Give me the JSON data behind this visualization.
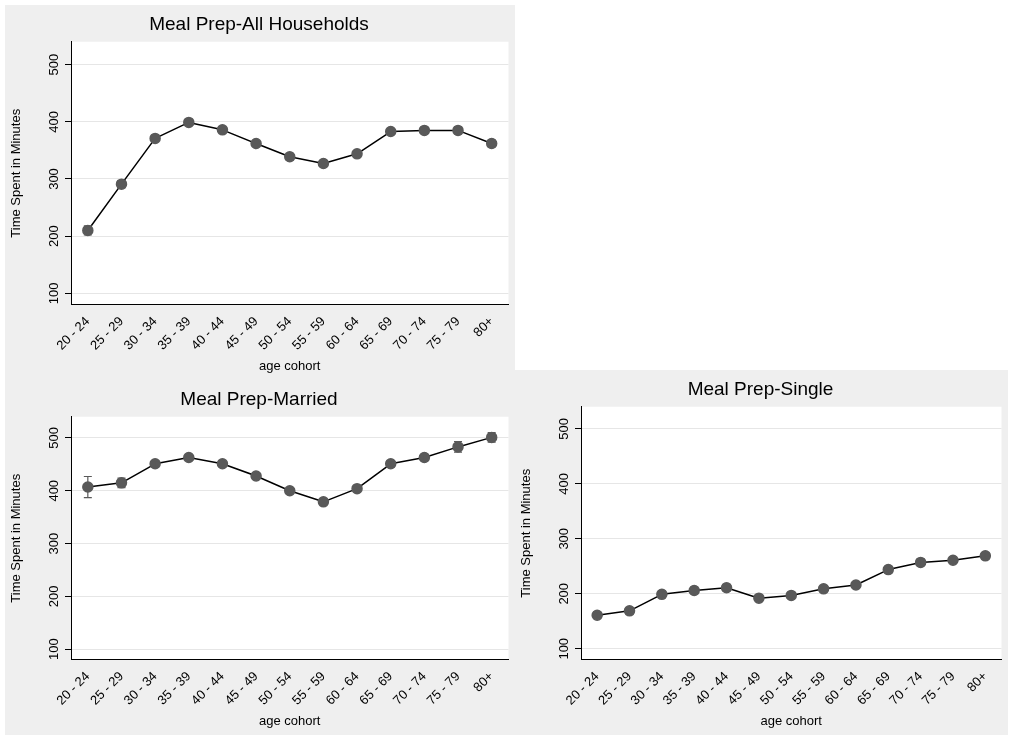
{
  "chart_data": [
    {
      "type": "line",
      "title": "Meal Prep-All Households",
      "xlabel": "age cohort",
      "ylabel": "Time Spent in Minutes",
      "categories": [
        "20 - 24",
        "25 - 29",
        "30 - 34",
        "35 - 39",
        "40 - 44",
        "45 - 49",
        "50 - 54",
        "55 - 59",
        "60 - 64",
        "65 - 69",
        "70 - 74",
        "75 - 79",
        "80+"
      ],
      "series": [
        {
          "color": "#595959",
          "values": [
            210,
            291,
            371,
            399,
            386,
            362,
            339,
            327,
            344,
            383,
            385,
            385,
            362
          ],
          "errors": [
            8,
            6,
            null,
            null,
            null,
            null,
            6,
            null,
            null,
            null,
            null,
            6,
            6
          ]
        }
      ],
      "ylim": [
        80,
        540
      ],
      "yticks": [
        100,
        200,
        300,
        400,
        500
      ],
      "grid": "y",
      "marker": "circle",
      "line_style": "solid",
      "legend": false
    },
    {
      "type": "line",
      "title": "Meal Prep-Married",
      "xlabel": "age cohort",
      "ylabel": "Time Spent in Minutes",
      "categories": [
        "20 - 24",
        "25 - 29",
        "30 - 34",
        "35 - 39",
        "40 - 44",
        "45 - 49",
        "50 - 54",
        "55 - 59",
        "60 - 64",
        "65 - 69",
        "70 - 74",
        "75 - 79",
        "80+"
      ],
      "series": [
        {
          "color": "#595959",
          "values": [
            407,
            415,
            451,
            463,
            451,
            428,
            400,
            379,
            404,
            451,
            463,
            483,
            501
          ],
          "errors": [
            20,
            9,
            6,
            null,
            null,
            null,
            null,
            null,
            null,
            6,
            6,
            10,
            9
          ]
        }
      ],
      "ylim": [
        80,
        540
      ],
      "yticks": [
        100,
        200,
        300,
        400,
        500
      ],
      "grid": "y",
      "marker": "circle",
      "line_style": "solid",
      "legend": false
    },
    {
      "type": "line",
      "title": "Meal Prep-Single",
      "xlabel": "age cohort",
      "ylabel": "Time Spent in Minutes",
      "categories": [
        "20 - 24",
        "25 - 29",
        "30 - 34",
        "35 - 39",
        "40 - 44",
        "45 - 49",
        "50 - 54",
        "55 - 59",
        "60 - 64",
        "65 - 69",
        "70 - 74",
        "75 - 79",
        "80+"
      ],
      "series": [
        {
          "color": "#595959",
          "values": [
            161,
            169,
            199,
            206,
            211,
            192,
            197,
            209,
            216,
            244,
            257,
            261,
            269
          ],
          "errors": [
            6,
            6,
            6,
            6,
            6,
            null,
            null,
            null,
            null,
            6,
            6,
            null,
            6
          ]
        }
      ],
      "ylim": [
        80,
        540
      ],
      "yticks": [
        100,
        200,
        300,
        400,
        500
      ],
      "grid": "y",
      "marker": "circle",
      "line_style": "solid",
      "legend": false
    }
  ]
}
